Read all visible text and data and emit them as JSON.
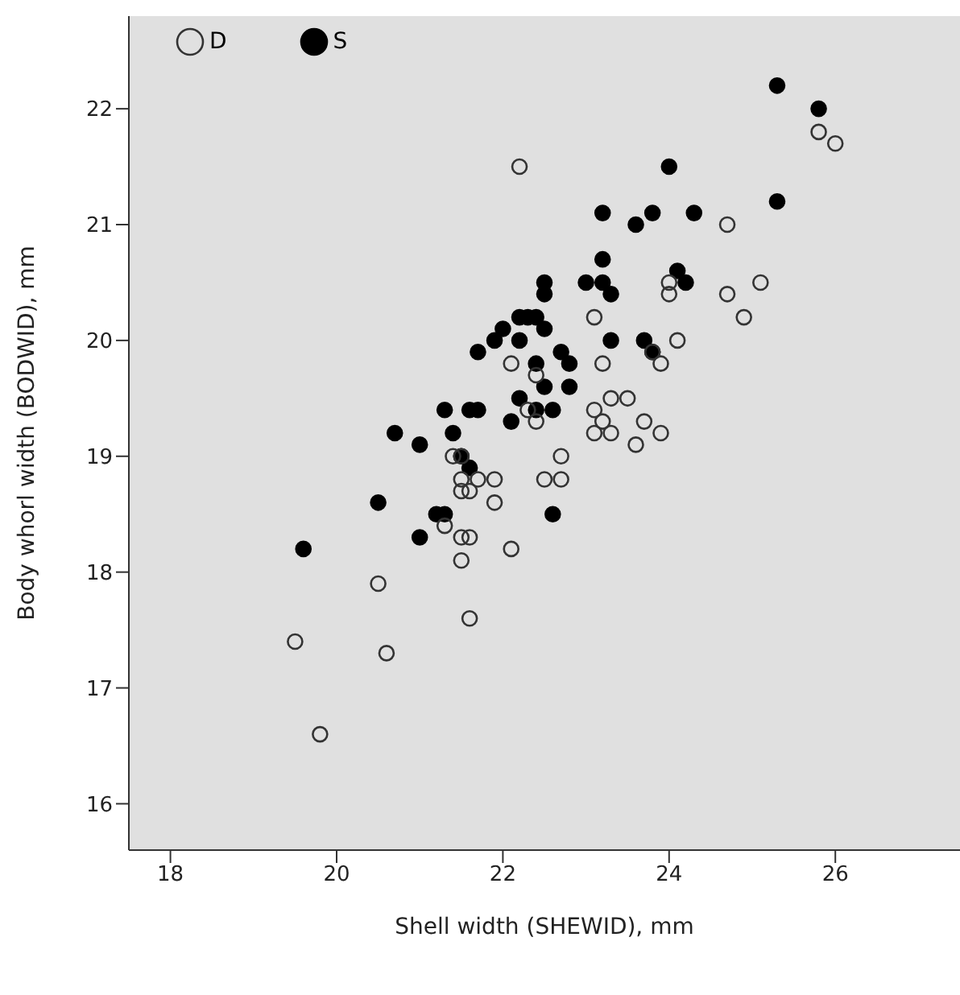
{
  "chart_data": {
    "type": "scatter",
    "xlabel": "Shell width (SHEWID), mm",
    "ylabel": "Body whorl width (BODWID), mm",
    "xlim": [
      17.5,
      27.5
    ],
    "xticks": [
      18,
      20,
      22,
      24,
      26
    ],
    "ylim": [
      15.6,
      22.8
    ],
    "yticks": [
      16,
      17,
      18,
      19,
      20,
      21,
      22
    ],
    "grid": false,
    "legend": "top left",
    "marker": "circle",
    "series": [
      {
        "name": "D",
        "color": "#333333",
        "x": [
          22.2,
          24.7,
          25.8,
          26.0,
          24.0,
          24.0,
          25.1,
          24.7,
          24.9,
          23.1,
          24.1,
          22.1,
          23.2,
          23.8,
          23.9,
          22.4,
          23.3,
          23.5,
          22.3,
          22.4,
          23.1,
          23.2,
          23.7,
          23.1,
          23.3,
          23.9,
          23.6,
          21.5,
          22.7,
          21.7,
          21.5,
          21.9,
          22.5,
          22.7,
          21.5,
          21.6,
          21.4,
          21.9,
          21.3,
          21.5,
          21.6,
          22.1,
          21.5,
          20.5,
          21.6,
          19.5,
          20.6,
          19.8
        ],
        "values": [
          21.5,
          21.0,
          21.8,
          21.7,
          20.5,
          20.4,
          20.5,
          20.4,
          20.2,
          20.2,
          20.0,
          19.8,
          19.8,
          19.9,
          19.8,
          19.7,
          19.5,
          19.5,
          19.4,
          19.3,
          19.4,
          19.3,
          19.3,
          19.2,
          19.2,
          19.2,
          19.1,
          19.0,
          19.0,
          18.8,
          18.8,
          18.8,
          18.8,
          18.8,
          18.7,
          18.7,
          19.0,
          18.6,
          18.4,
          18.3,
          18.3,
          18.2,
          18.1,
          17.9,
          17.6,
          17.4,
          17.3,
          16.6
        ]
      },
      {
        "name": "S",
        "color": "#000000",
        "x": [
          25.3,
          25.8,
          25.3,
          24.0,
          23.2,
          23.6,
          23.8,
          24.3,
          23.2,
          22.5,
          22.5,
          23.0,
          23.2,
          23.3,
          24.1,
          24.2,
          22.2,
          22.3,
          22.4,
          22.2,
          22.5,
          21.9,
          21.7,
          22.0,
          22.7,
          22.8,
          22.4,
          23.3,
          23.7,
          23.8,
          22.5,
          22.8,
          22.2,
          22.4,
          22.6,
          22.1,
          21.6,
          21.7,
          21.3,
          20.7,
          21.0,
          21.4,
          21.5,
          21.6,
          21.2,
          21.3,
          20.5,
          21.0,
          19.6,
          22.6
        ],
        "values": [
          22.2,
          22.0,
          21.2,
          21.5,
          21.1,
          21.0,
          21.1,
          21.1,
          20.7,
          20.5,
          20.4,
          20.5,
          20.5,
          20.4,
          20.6,
          20.5,
          20.2,
          20.2,
          20.2,
          20.0,
          20.1,
          20.0,
          19.9,
          20.1,
          19.9,
          19.8,
          19.8,
          20.0,
          20.0,
          19.9,
          19.6,
          19.6,
          19.5,
          19.4,
          19.4,
          19.3,
          19.4,
          19.4,
          19.4,
          19.2,
          19.1,
          19.2,
          19.0,
          18.9,
          18.5,
          18.5,
          18.6,
          18.3,
          18.2,
          18.5
        ]
      }
    ]
  }
}
